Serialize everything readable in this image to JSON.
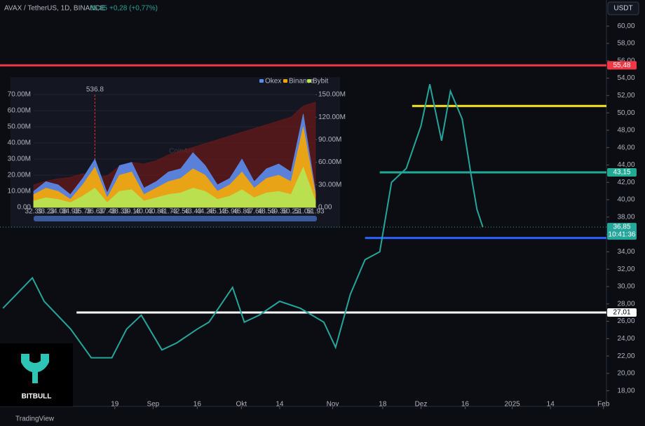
{
  "chart_data": [
    {
      "type": "line",
      "title": "AVAX / TetherUS, 1D, BINANCE",
      "last": "36,85",
      "change": "+0,28 (+0,77%)",
      "currency": "USDT",
      "color": "#26a69a",
      "x": [
        -20,
        -10,
        -6,
        3,
        10,
        17,
        22,
        27,
        34,
        39,
        46,
        50,
        58,
        62,
        67,
        74,
        81,
        89,
        93,
        98,
        103,
        108,
        112,
        117,
        122,
        125,
        129,
        132,
        136,
        139,
        141,
        143
      ],
      "values": [
        27.5,
        31.0,
        28.3,
        25.1,
        21.8,
        21.8,
        25.1,
        26.7,
        22.7,
        23.5,
        25.1,
        25.9,
        29.9,
        25.9,
        26.7,
        28.3,
        27.5,
        25.9,
        23.0,
        29.1,
        33.1,
        34.0,
        42.0,
        43.6,
        48.5,
        53.3,
        46.8,
        52.5,
        49.3,
        42.9,
        38.9,
        36.85
      ],
      "xlim": [
        -21,
        185
      ],
      "xticks": [
        {
          "value": 18,
          "label": "19"
        },
        {
          "value": 31,
          "label": "Sep"
        },
        {
          "value": 46,
          "label": "16"
        },
        {
          "value": 61,
          "label": "Okt"
        },
        {
          "value": 74,
          "label": "14"
        },
        {
          "value": 92,
          "label": "Nov"
        },
        {
          "value": 109,
          "label": "18"
        },
        {
          "value": 122,
          "label": "Dez"
        },
        {
          "value": 137,
          "label": "16"
        },
        {
          "value": 153,
          "label": "2025"
        },
        {
          "value": 166,
          "label": "14"
        },
        {
          "value": 184,
          "label": "Feb"
        }
      ],
      "ylim": [
        16.2,
        63
      ],
      "yticks": [
        {
          "value": 18,
          "label": "18,00"
        },
        {
          "value": 20,
          "label": "20,00"
        },
        {
          "value": 22,
          "label": "22,00"
        },
        {
          "value": 24,
          "label": "24,00"
        },
        {
          "value": 26,
          "label": "26,00"
        },
        {
          "value": 28,
          "label": "28,00"
        },
        {
          "value": 30,
          "label": "30,00"
        },
        {
          "value": 32,
          "label": "32,00"
        },
        {
          "value": 34,
          "label": "34,00"
        },
        {
          "value": 36,
          "label": "36,00"
        },
        {
          "value": 38,
          "label": "38,00"
        },
        {
          "value": 40,
          "label": "40,00"
        },
        {
          "value": 42,
          "label": "42,00"
        },
        {
          "value": 44,
          "label": "44,00"
        },
        {
          "value": 46,
          "label": "46,00"
        },
        {
          "value": 48,
          "label": "48,00"
        },
        {
          "value": 50,
          "label": "50,00"
        },
        {
          "value": 52,
          "label": "52,00"
        },
        {
          "value": 54,
          "label": "54,00"
        },
        {
          "value": 56,
          "label": "56,00"
        },
        {
          "value": 58,
          "label": "58,00"
        },
        {
          "value": 60,
          "label": "60,00"
        }
      ],
      "levels": [
        {
          "value": 55.48,
          "label": "55,48",
          "color": "#f23645",
          "from": -21
        },
        {
          "value": 43.15,
          "label": "43,15",
          "color": "#22ab94",
          "from": 108
        },
        {
          "value": 27.01,
          "label": "27,01",
          "color": "#ffffff",
          "from": 5
        },
        {
          "value": 35.6,
          "color": "#2962ff",
          "from": 103
        },
        {
          "value": 50.8,
          "color": "#f5e625",
          "from": 119
        },
        {
          "value": 36.85,
          "label": "36,85",
          "countdown": "10:41:36",
          "color": "#26a69a",
          "from": -21
        }
      ],
      "logo": "BITBULL",
      "footer": "TradingView"
    },
    {
      "type": "area",
      "watermark": "CoinAnk",
      "annotation": "536.8",
      "categories": [
        "32.39",
        "33.23",
        "34.08",
        "34.93",
        "35.78",
        "36.63",
        "37.48",
        "38.33",
        "39.18",
        "40.03",
        "40.88",
        "41.73",
        "42.58",
        "43.43",
        "44.28",
        "45.13",
        "45.98",
        "46.83",
        "47.68",
        "48.53",
        "49.38",
        "50.23",
        "51.08",
        "51.93"
      ],
      "series": [
        {
          "color": "#6b1a1a",
          "axis": "y2",
          "values": [
            30,
            35,
            38,
            40,
            45,
            40,
            42,
            55,
            60,
            58,
            62,
            70,
            75,
            80,
            85,
            90,
            95,
            100,
            105,
            110,
            115,
            120,
            135,
            140
          ]
        },
        {
          "name": "Okex",
          "color": "#5b8def",
          "values": [
            10,
            16,
            14,
            8,
            18,
            30,
            9,
            26,
            28,
            12,
            16,
            22,
            24,
            34,
            26,
            14,
            18,
            30,
            16,
            24,
            27,
            22,
            58,
            10
          ]
        },
        {
          "name": "Binance",
          "color": "#f7a600",
          "values": [
            8,
            12,
            10,
            5,
            14,
            25,
            6,
            20,
            22,
            8,
            12,
            16,
            18,
            24,
            20,
            10,
            14,
            22,
            12,
            18,
            20,
            16,
            50,
            8
          ]
        },
        {
          "name": "Bybit",
          "color": "#b5e655",
          "values": [
            4,
            6,
            5,
            3,
            7,
            12,
            3,
            10,
            11,
            4,
            6,
            8,
            9,
            12,
            10,
            5,
            7,
            11,
            6,
            9,
            10,
            8,
            25,
            4
          ]
        }
      ],
      "ylim": [
        0,
        70
      ],
      "yticks": [
        {
          "value": 0,
          "label": "0.00"
        },
        {
          "value": 10,
          "label": "10.00M"
        },
        {
          "value": 20,
          "label": "20.00M"
        },
        {
          "value": 30,
          "label": "30.00M"
        },
        {
          "value": 40,
          "label": "40.00M"
        },
        {
          "value": 50,
          "label": "50.00M"
        },
        {
          "value": 60,
          "label": "60.00M"
        },
        {
          "value": 70,
          "label": "70.00M"
        }
      ],
      "y2lim": [
        0,
        150
      ],
      "y2ticks": [
        {
          "value": 0,
          "label": "0.00"
        },
        {
          "value": 30,
          "label": "30.00M"
        },
        {
          "value": 60,
          "label": "60.00M"
        },
        {
          "value": 90,
          "label": "90.00M"
        },
        {
          "value": 120,
          "label": "120.00M"
        },
        {
          "value": 150,
          "label": "150.00M"
        }
      ]
    }
  ]
}
